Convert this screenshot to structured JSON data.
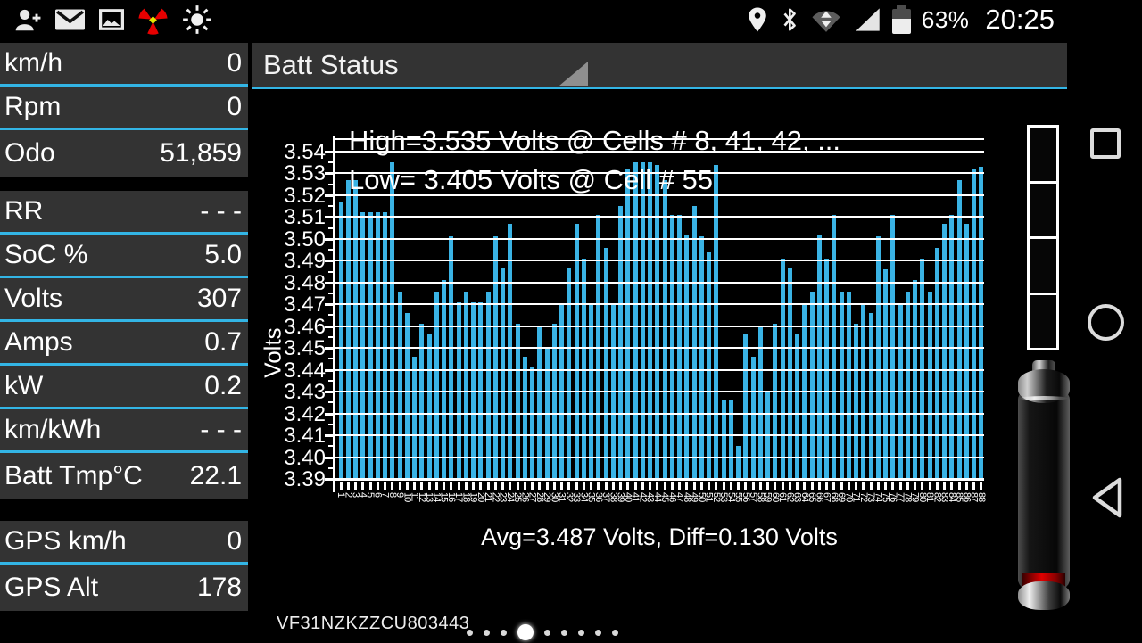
{
  "status_bar": {
    "left_icons": [
      "add-contact-icon",
      "email-icon",
      "gallery-icon",
      "radiation-icon",
      "brightness-icon"
    ],
    "right_icons": [
      "location-icon",
      "bluetooth-icon",
      "hotspot-icon",
      "signal-icon",
      "battery-status-icon"
    ],
    "battery_percent": "63%",
    "clock": "20:25"
  },
  "sidebar": {
    "groups": [
      {
        "rows": [
          {
            "label": "km/h",
            "value": "0"
          },
          {
            "label": "Rpm",
            "value": "0"
          },
          {
            "label": "Odo",
            "value": "51,859"
          }
        ]
      },
      {
        "rows": [
          {
            "label": "RR",
            "value": "- - -"
          },
          {
            "label": "SoC %",
            "value": "5.0"
          },
          {
            "label": "Volts",
            "value": "307"
          },
          {
            "label": "Amps",
            "value": "0.7"
          },
          {
            "label": "kW",
            "value": "0.2"
          },
          {
            "label": "km/kWh",
            "value": "- - -"
          },
          {
            "label": "Batt Tmp°C",
            "value": "22.1"
          }
        ]
      },
      {
        "rows": [
          {
            "label": "GPS km/h",
            "value": "0"
          },
          {
            "label": "GPS Alt",
            "value": "178"
          }
        ]
      }
    ]
  },
  "header": {
    "spinner_label": "Batt Status"
  },
  "chart_data": {
    "type": "bar",
    "categories": [
      1,
      2,
      3,
      4,
      5,
      6,
      7,
      8,
      9,
      10,
      11,
      12,
      13,
      14,
      15,
      16,
      17,
      18,
      19,
      20,
      21,
      22,
      23,
      24,
      25,
      26,
      27,
      28,
      29,
      30,
      31,
      32,
      33,
      34,
      35,
      36,
      37,
      38,
      39,
      40,
      41,
      42,
      43,
      44,
      45,
      46,
      47,
      48,
      49,
      50,
      51,
      52,
      53,
      54,
      55,
      56,
      57,
      58,
      59,
      60,
      61,
      62,
      63,
      64,
      65,
      66,
      67,
      68,
      69,
      70,
      71,
      72,
      73,
      74,
      75,
      76,
      77,
      78,
      79,
      80,
      81,
      82,
      83,
      84,
      85,
      86,
      87,
      88
    ],
    "values": [
      3.517,
      3.527,
      3.527,
      3.512,
      3.512,
      3.512,
      3.512,
      3.535,
      3.476,
      3.466,
      3.446,
      3.461,
      3.456,
      3.476,
      3.481,
      3.501,
      3.471,
      3.476,
      3.471,
      3.471,
      3.476,
      3.501,
      3.487,
      3.507,
      3.461,
      3.446,
      3.441,
      3.46,
      3.45,
      3.461,
      3.47,
      3.487,
      3.507,
      3.491,
      3.47,
      3.511,
      3.496,
      3.47,
      3.515,
      3.532,
      3.535,
      3.535,
      3.535,
      3.534,
      3.527,
      3.511,
      3.511,
      3.502,
      3.515,
      3.501,
      3.494,
      3.534,
      3.426,
      3.426,
      3.405,
      3.456,
      3.446,
      3.46,
      3.43,
      3.461,
      3.491,
      3.487,
      3.456,
      3.47,
      3.476,
      3.502,
      3.491,
      3.511,
      3.476,
      3.476,
      3.461,
      3.47,
      3.466,
      3.501,
      3.486,
      3.511,
      3.47,
      3.476,
      3.481,
      3.491,
      3.476,
      3.496,
      3.507,
      3.511,
      3.527,
      3.507,
      3.532,
      3.533
    ],
    "title": "",
    "ylabel": "Volts",
    "xlabel": "Avg=3.487 Volts, Diff=0.130 Volts",
    "yticks": [
      3.39,
      3.4,
      3.41,
      3.42,
      3.43,
      3.44,
      3.45,
      3.46,
      3.47,
      3.48,
      3.49,
      3.5,
      3.51,
      3.52,
      3.53,
      3.54
    ],
    "ylim": [
      3.39,
      3.5455
    ],
    "grid": "on",
    "annotations": [
      "High=3.535 Volts @ Cells # 8, 41, 42,  ...",
      "Low= 3.405 Volts @ Cell # 55"
    ],
    "bar_color": "#3ab3e5"
  },
  "footer": {
    "vin": "VF31NZKZZCU803443",
    "page_dots": {
      "count": 9,
      "active": 4
    }
  },
  "right_widgets": {
    "charge_gauge_segments": 4,
    "battery_graphic": "battery-cylinder-low-red"
  },
  "nav_bar": {
    "buttons": [
      "recents-button",
      "home-button",
      "back-button"
    ]
  },
  "colors": {
    "accent": "#33b5e5",
    "tile_bg": "#333333",
    "bar": "#3ab3e5"
  }
}
